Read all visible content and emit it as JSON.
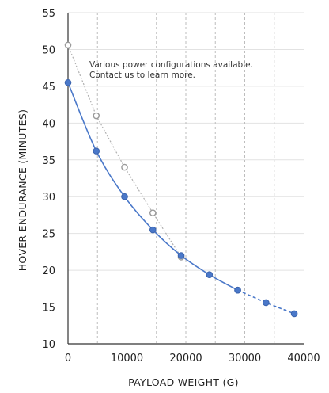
{
  "chart_data": {
    "type": "line",
    "xlabel": "PAYLOAD WEIGHT (G)",
    "ylabel": "HOVER ENDURANCE  (MINUTES)",
    "xlim": [
      0,
      40000
    ],
    "ylim": [
      10,
      55
    ],
    "xticks": [
      0,
      10000,
      20000,
      30000,
      40000
    ],
    "yticks": [
      10,
      15,
      20,
      25,
      30,
      35,
      40,
      45,
      50,
      55
    ],
    "grid": {
      "vertical_dashed": true,
      "horizontal_solid": true
    },
    "annotation": [
      "Various power configurations available.",
      "Contact us to learn more."
    ],
    "series": [
      {
        "color": "#4a78c9",
        "style": "solid",
        "marker": "filled",
        "x": [
          0,
          4800,
          9600,
          14400,
          19200,
          24000,
          28800
        ],
        "y": [
          45.5,
          36.2,
          30.0,
          25.5,
          22.0,
          19.4,
          17.3
        ]
      },
      {
        "color": "#4a78c9",
        "style": "dashed",
        "marker": "filled",
        "x": [
          28800,
          33600,
          38400
        ],
        "y": [
          17.3,
          15.6,
          14.1
        ]
      },
      {
        "color": "#b0b0b0",
        "style": "dotted",
        "marker": "open",
        "x": [
          0,
          4800,
          9600,
          14400,
          19200
        ],
        "y": [
          50.6,
          41.0,
          34.0,
          27.8,
          21.8
        ]
      }
    ]
  }
}
